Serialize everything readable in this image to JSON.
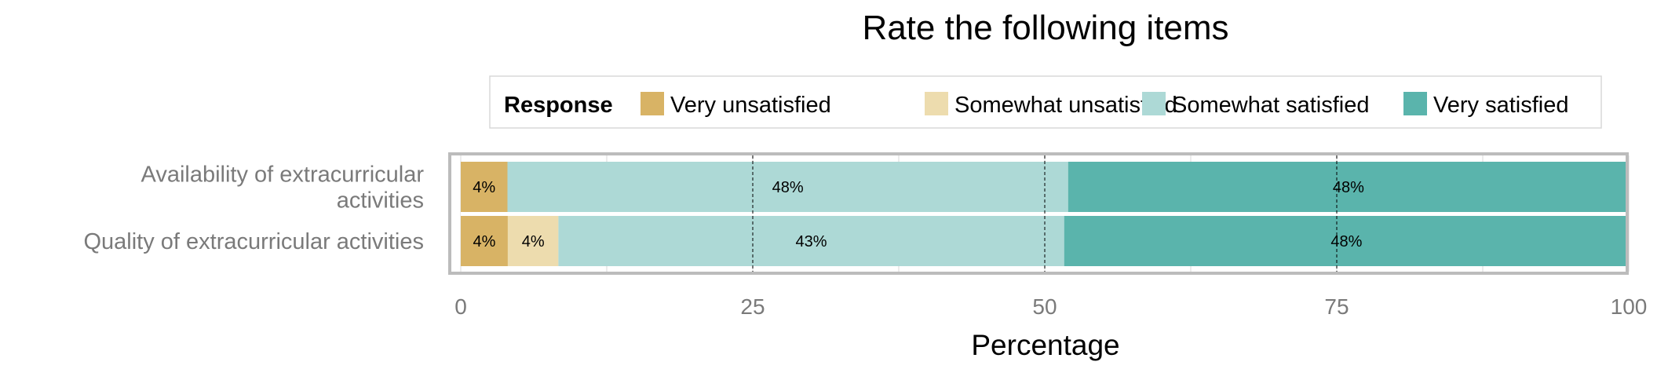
{
  "chart_data": {
    "type": "bar",
    "orientation": "horizontal",
    "stacked": true,
    "title": "Rate the following items",
    "xlabel": "Percentage",
    "ylabel": "",
    "xlim": [
      0,
      100
    ],
    "x_ticks": [
      0,
      25,
      50,
      75,
      100
    ],
    "grid": true,
    "legend": {
      "title": "Response",
      "position": "top"
    },
    "categories": [
      "Availability of extracurricular\nactivities",
      "Quality of extracurricular activities"
    ],
    "series": [
      {
        "name": "Very unsatisfied",
        "color": "#D8B365",
        "values": [
          4,
          4
        ],
        "labels": [
          "4%",
          "4%"
        ]
      },
      {
        "name": "Somewhat unsatisfied",
        "color": "#EDDCAE",
        "values": [
          0,
          4.3
        ],
        "labels": [
          "",
          "4%"
        ]
      },
      {
        "name": "Somewhat satisfied",
        "color": "#ADD9D6",
        "values": [
          48,
          43
        ],
        "labels": [
          "48%",
          "43%"
        ]
      },
      {
        "name": "Very satisfied",
        "color": "#5AB4AC",
        "values": [
          48,
          48
        ],
        "labels": [
          "48%",
          "48%"
        ]
      }
    ]
  }
}
